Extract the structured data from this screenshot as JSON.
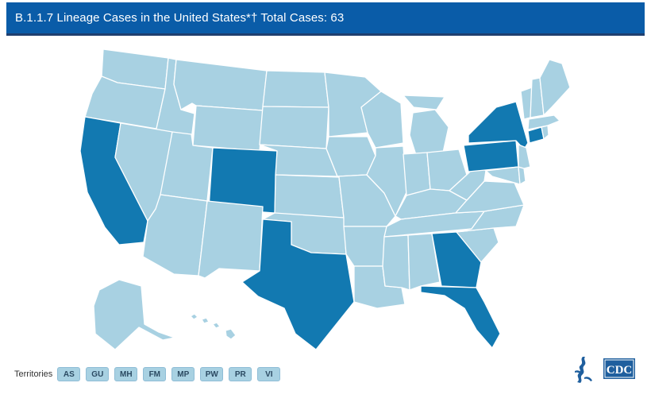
{
  "header": {
    "title": "B.1.1.7 Lineage Cases in the United States*† Total Cases: 63"
  },
  "legend_colors": {
    "no_cases": "#a8d1e2",
    "has_cases": "#1279b1",
    "territory_button": "#a8d1e2",
    "header_bg": "#0a5ca8"
  },
  "map": {
    "states_with_cases": [
      "California",
      "Colorado",
      "Texas",
      "Georgia",
      "Florida",
      "Pennsylvania",
      "New York",
      "Connecticut"
    ]
  },
  "territories": {
    "label": "Territories",
    "items": [
      {
        "code": "AS"
      },
      {
        "code": "GU"
      },
      {
        "code": "MH"
      },
      {
        "code": "FM"
      },
      {
        "code": "MP"
      },
      {
        "code": "PW"
      },
      {
        "code": "PR"
      },
      {
        "code": "VI"
      }
    ]
  },
  "logo": {
    "text": "CDC",
    "icon": "hhs-eagle-icon"
  }
}
